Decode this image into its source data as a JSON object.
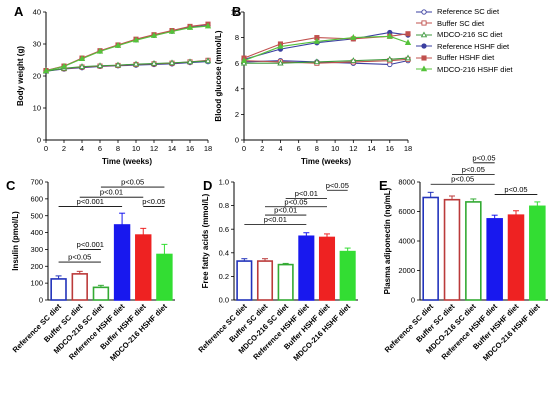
{
  "legend": {
    "items": [
      {
        "label": "Reference SC diet",
        "color": "#3a3fa0",
        "marker": "circle",
        "fill": false
      },
      {
        "label": "Buffer SC diet",
        "color": "#c0504d",
        "marker": "square",
        "fill": false
      },
      {
        "label": "MDCO-216 SC diet",
        "color": "#3f9a3f",
        "marker": "triangle",
        "fill": false
      },
      {
        "label": "Reference HSHF diet",
        "color": "#3a3fa0",
        "marker": "circle",
        "fill": true
      },
      {
        "label": "Buffer HSHF diet",
        "color": "#c0504d",
        "marker": "square",
        "fill": true
      },
      {
        "label": "MDCO-216 HSHF diet",
        "color": "#55c23a",
        "marker": "triangle",
        "fill": true
      }
    ]
  },
  "chart_data": [
    {
      "panel": "A",
      "type": "line",
      "xlabel": "Time (weeks)",
      "ylabel": "Body weight (g)",
      "xlim": [
        0,
        18
      ],
      "ylim": [
        0,
        40
      ],
      "xticks": [
        0,
        2,
        4,
        6,
        8,
        10,
        12,
        14,
        16,
        18
      ],
      "yticks": [
        0,
        10,
        20,
        30,
        40
      ],
      "x": [
        0,
        2,
        4,
        6,
        8,
        10,
        12,
        14,
        16,
        18
      ],
      "series": [
        {
          "name": "Reference SC diet",
          "values": [
            21.5,
            22.2,
            22.6,
            23.0,
            23.2,
            23.4,
            23.6,
            23.8,
            24.2,
            24.5
          ]
        },
        {
          "name": "Buffer SC diet",
          "values": [
            21.6,
            22.3,
            22.8,
            23.1,
            23.3,
            23.6,
            23.8,
            24.0,
            24.4,
            24.9
          ]
        },
        {
          "name": "MDCO-216 SC diet",
          "values": [
            21.5,
            22.4,
            22.9,
            23.2,
            23.4,
            23.7,
            23.9,
            24.1,
            24.4,
            24.7
          ]
        },
        {
          "name": "Reference HSHF diet",
          "values": [
            21.7,
            23.0,
            25.5,
            27.8,
            29.6,
            31.3,
            32.7,
            34.0,
            35.3,
            35.8
          ]
        },
        {
          "name": "Buffer HSHF diet",
          "values": [
            21.7,
            23.1,
            25.6,
            27.9,
            29.7,
            31.5,
            32.9,
            34.2,
            35.5,
            36.2
          ]
        },
        {
          "name": "MDCO-216 HSHF diet",
          "values": [
            21.6,
            23.0,
            25.4,
            27.7,
            29.5,
            31.2,
            32.6,
            33.9,
            35.1,
            35.6
          ]
        }
      ]
    },
    {
      "panel": "B",
      "type": "line",
      "xlabel": "Time (weeks)",
      "ylabel": "Blood glucose (mmol/L)",
      "xlim": [
        0,
        18
      ],
      "ylim": [
        0,
        10
      ],
      "xticks": [
        0,
        2,
        4,
        6,
        8,
        10,
        12,
        14,
        16,
        18
      ],
      "yticks": [
        0,
        2,
        4,
        6,
        8,
        10
      ],
      "x": [
        0,
        4,
        8,
        12,
        16,
        18
      ],
      "series": [
        {
          "name": "Reference SC diet",
          "values": [
            6.1,
            6.2,
            6.1,
            6.0,
            5.9,
            6.2
          ]
        },
        {
          "name": "Buffer SC diet",
          "values": [
            6.2,
            6.1,
            6.0,
            6.1,
            6.2,
            6.3
          ]
        },
        {
          "name": "MDCO-216 SC diet",
          "values": [
            6.0,
            6.0,
            6.1,
            6.2,
            6.3,
            6.4
          ]
        },
        {
          "name": "Reference HSHF diet",
          "values": [
            6.3,
            7.1,
            7.6,
            7.9,
            8.4,
            8.2
          ]
        },
        {
          "name": "Buffer HSHF diet",
          "values": [
            6.4,
            7.5,
            8.0,
            7.9,
            8.1,
            8.3
          ]
        },
        {
          "name": "MDCO-216 HSHF diet",
          "values": [
            6.2,
            7.3,
            7.7,
            8.0,
            8.1,
            7.6
          ]
        }
      ]
    },
    {
      "panel": "C",
      "type": "bar",
      "ylabel": "Insulin (pmol/L)",
      "ylim": [
        0,
        700
      ],
      "yticks": [
        0,
        100,
        200,
        300,
        400,
        500,
        600,
        700
      ],
      "categories": [
        "Reference SC diet",
        "Buffer SC diet",
        "MDCO-216 SC diet",
        "Reference HSHF diet",
        "Buffer HSHF diet",
        "MDCO-216 HSHF diet"
      ],
      "values": [
        125,
        155,
        75,
        445,
        385,
        270
      ],
      "errors": [
        18,
        15,
        12,
        70,
        40,
        60
      ],
      "annotations": [
        {
          "label": "p<0.05",
          "from": 0,
          "to": 2,
          "y": 225
        },
        {
          "label": "p<0.001",
          "from": 1,
          "to": 2,
          "y": 300
        },
        {
          "label": "p<0.001",
          "from": 0,
          "to": 3,
          "y": 555
        },
        {
          "label": "p<0.05",
          "from": 4,
          "to": 5,
          "y": 555
        },
        {
          "label": "p<0.01",
          "from": 1,
          "to": 4,
          "y": 610
        },
        {
          "label": "p<0.05",
          "from": 2,
          "to": 5,
          "y": 670
        }
      ]
    },
    {
      "panel": "D",
      "type": "bar",
      "ylabel": "Free fatty acids (mmol/L)",
      "ylim": [
        0,
        1.0
      ],
      "yticks": [
        0.0,
        0.2,
        0.4,
        0.6,
        0.8,
        1.0
      ],
      "categories": [
        "Reference SC diet",
        "Buffer SC diet",
        "MDCO-216 SC diet",
        "Reference HSHF diet",
        "Buffer HSHF diet",
        "MDCO-216 HSHF diet"
      ],
      "values": [
        0.33,
        0.33,
        0.3,
        0.54,
        0.53,
        0.41
      ],
      "errors": [
        0.02,
        0.02,
        0.01,
        0.03,
        0.03,
        0.03
      ],
      "annotations": [
        {
          "label": "p<0.01",
          "from": 0,
          "to": 3,
          "y": 0.64
        },
        {
          "label": "p<0.01",
          "from": 1,
          "to": 3,
          "y": 0.72
        },
        {
          "label": "p<0.05",
          "from": 1,
          "to": 4,
          "y": 0.79
        },
        {
          "label": "p<0.01",
          "from": 2,
          "to": 4,
          "y": 0.86
        },
        {
          "label": "p<0.05",
          "from": 4,
          "to": 5,
          "y": 0.93
        }
      ]
    },
    {
      "panel": "E",
      "type": "bar",
      "ylabel": "Plasma adiponectin (ng/mL)",
      "ylim": [
        0,
        8000
      ],
      "yticks": [
        0,
        2000,
        4000,
        6000,
        8000
      ],
      "categories": [
        "Reference SC diet",
        "Buffer SC diet",
        "MDCO-216 SC diet",
        "Reference HSHF diet",
        "Buffer HSHF diet",
        "MDCO-216 HSHF diet"
      ],
      "values": [
        6950,
        6800,
        6650,
        5500,
        5750,
        6350
      ],
      "errors": [
        350,
        250,
        200,
        250,
        300,
        300
      ],
      "annotations": [
        {
          "label": "p<0.05",
          "from": 3,
          "to": 5,
          "y": 7150
        },
        {
          "label": "p<0.05",
          "from": 0,
          "to": 3,
          "y": 7850
        },
        {
          "label": "p<0.05",
          "from": 1,
          "to": 3,
          "y": 8500
        },
        {
          "label": "p<0.05",
          "from": 2,
          "to": 3,
          "y": 9300
        }
      ]
    }
  ]
}
